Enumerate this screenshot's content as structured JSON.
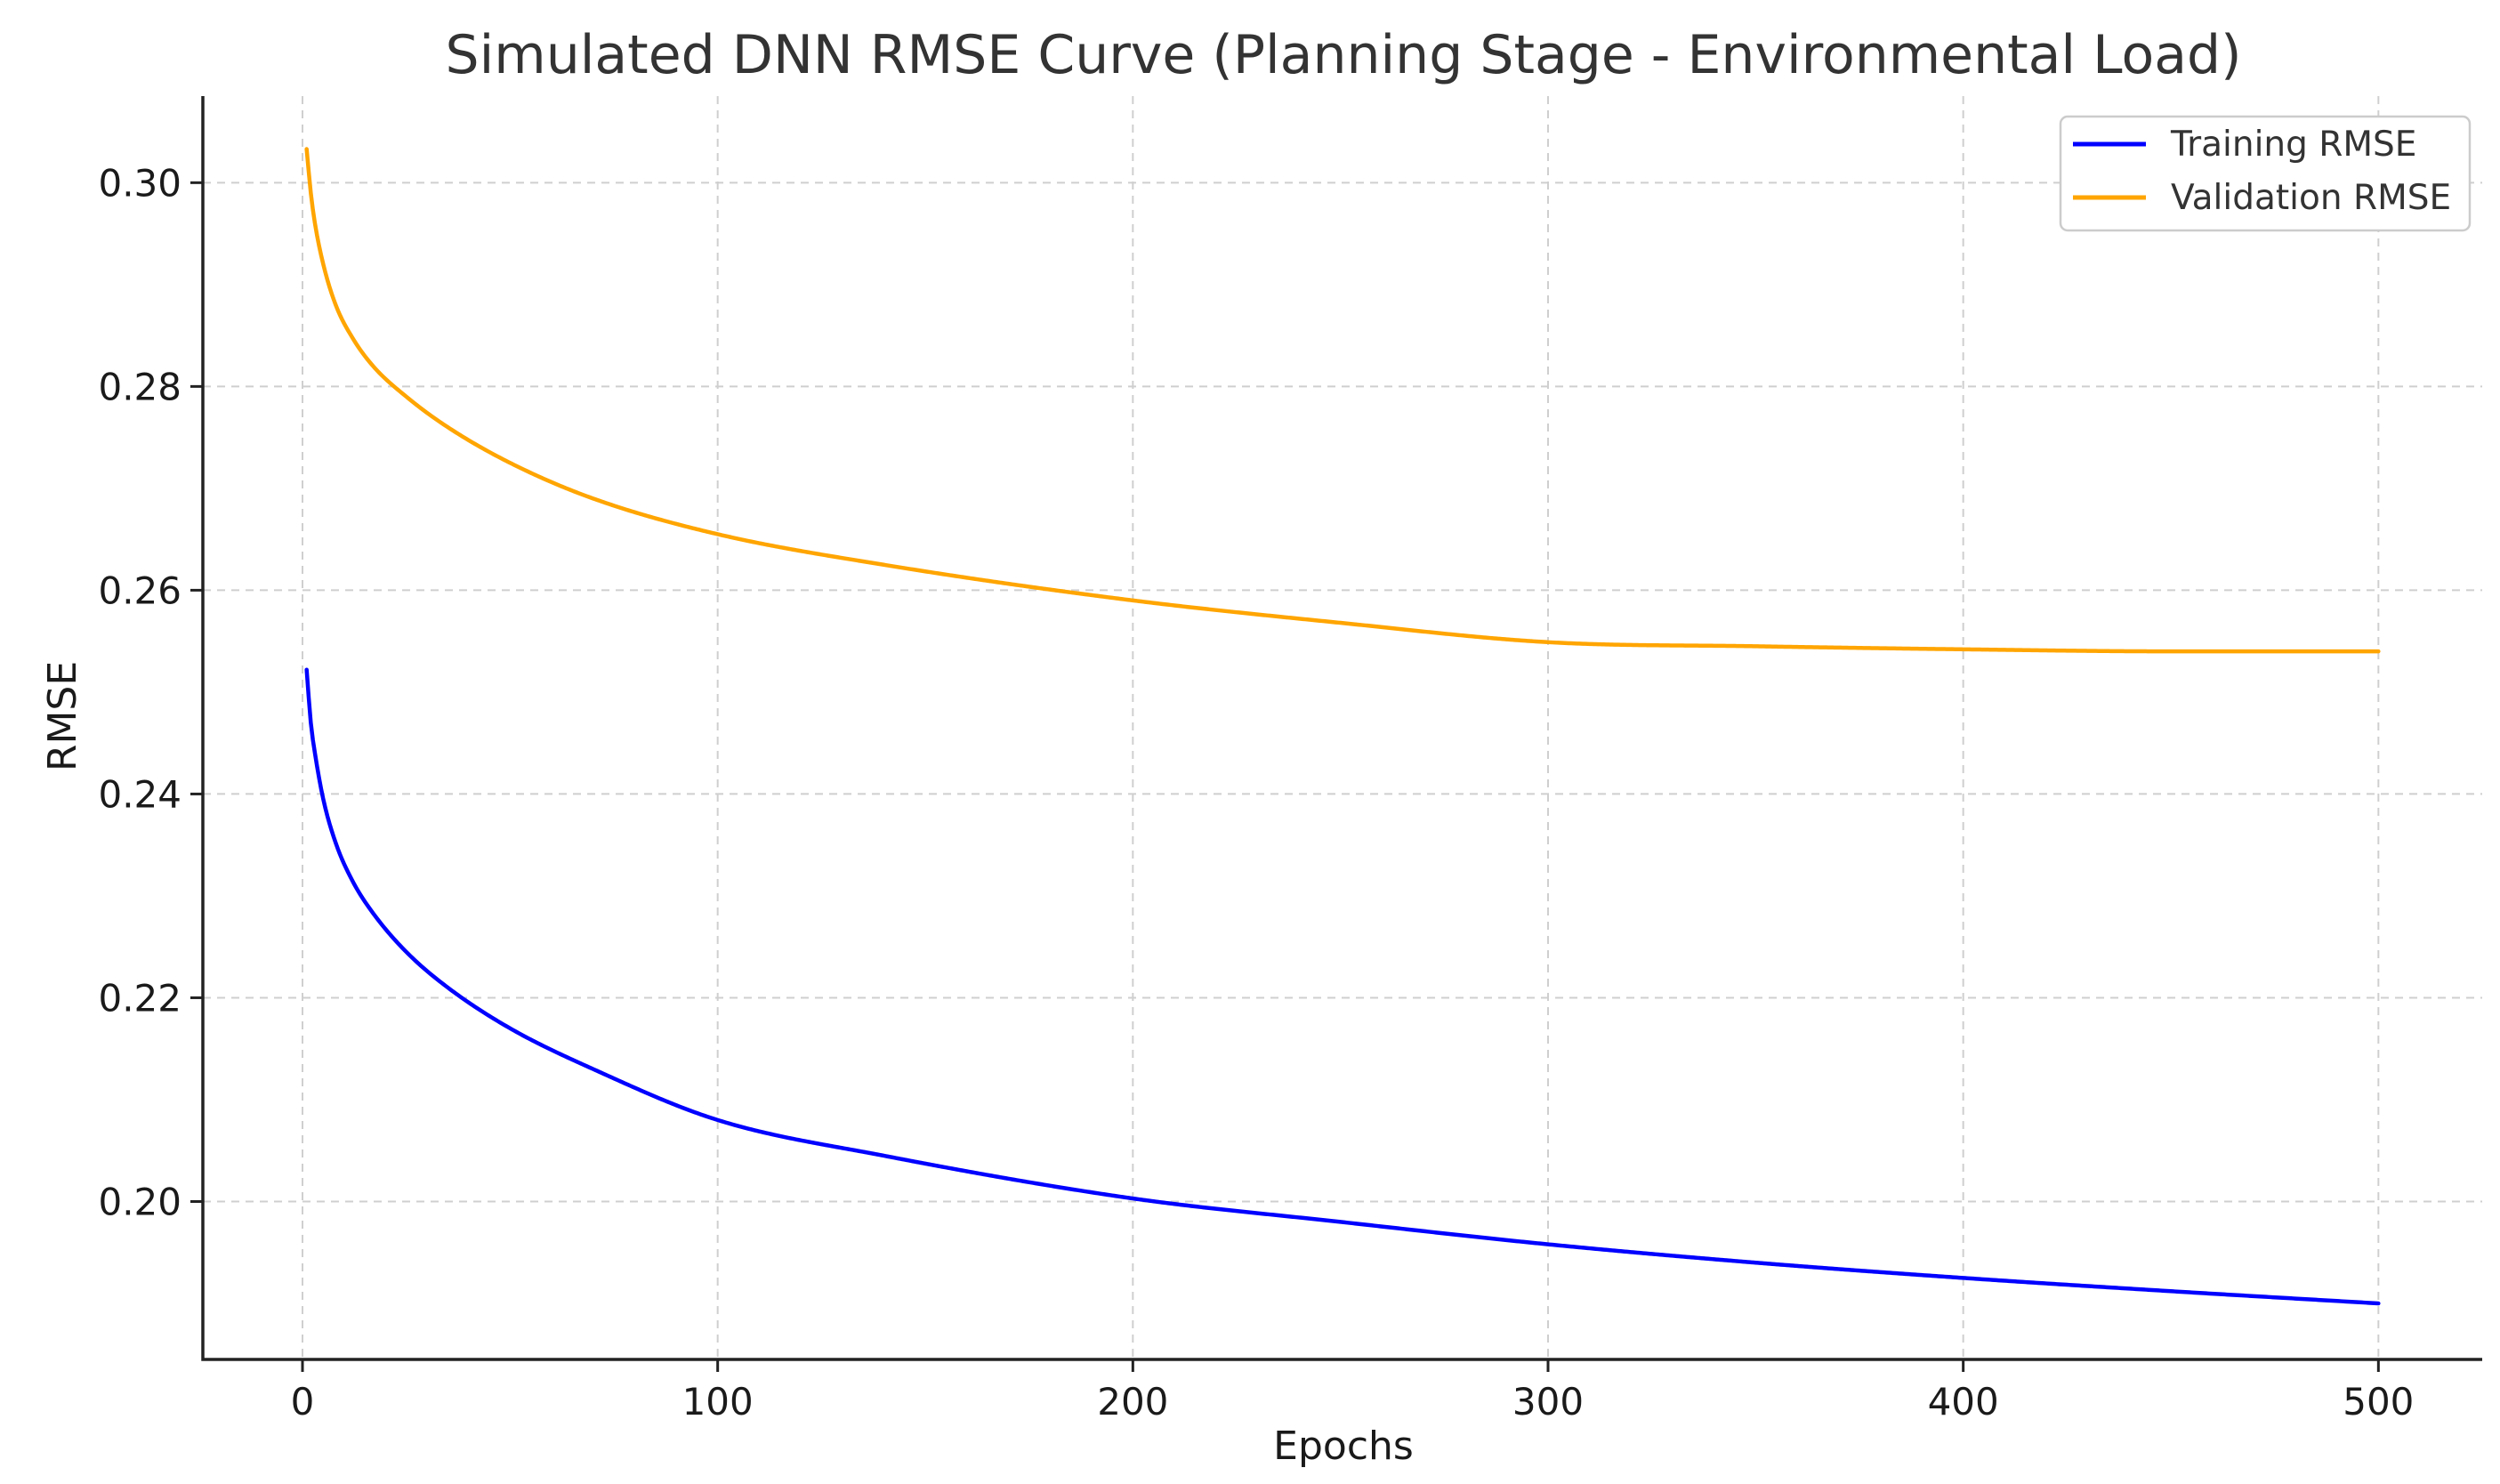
{
  "chart_data": {
    "type": "line",
    "title": "Simulated DNN RMSE Curve (Planning Stage - Environmental Load)",
    "xlabel": "Epochs",
    "ylabel": "RMSE",
    "xlim": [
      -24,
      525
    ],
    "ylim": [
      0.1845,
      0.3085
    ],
    "xticks": [
      0,
      100,
      200,
      300,
      400,
      500
    ],
    "xtick_labels": [
      "0",
      "100",
      "200",
      "300",
      "400",
      "500"
    ],
    "yticks": [
      0.2,
      0.22,
      0.24,
      0.26,
      0.28,
      0.3
    ],
    "ytick_labels": [
      "0.20",
      "0.22",
      "0.24",
      "0.26",
      "0.28",
      "0.30"
    ],
    "grid": true,
    "legend_position": "top-right",
    "x": [
      1,
      2,
      3,
      5,
      8,
      12,
      17,
      25,
      35,
      50,
      70,
      100,
      140,
      200,
      250,
      300,
      350,
      400,
      450,
      500
    ],
    "series": [
      {
        "name": "Training RMSE",
        "color": "#0000ff",
        "values": [
          0.2522,
          0.247,
          0.244,
          0.2395,
          0.2352,
          0.2315,
          0.2283,
          0.2245,
          0.221,
          0.217,
          0.213,
          0.208,
          0.2045,
          0.2003,
          0.198,
          0.1958,
          0.194,
          0.1925,
          0.1912,
          0.19
        ]
      },
      {
        "name": "Validation RMSE",
        "color": "#ffa500",
        "values": [
          0.3033,
          0.299,
          0.296,
          0.292,
          0.288,
          0.2848,
          0.282,
          0.279,
          0.276,
          0.2725,
          0.269,
          0.2655,
          0.2625,
          0.259,
          0.2568,
          0.2549,
          0.2545,
          0.2542,
          0.254,
          0.254
        ]
      }
    ]
  }
}
